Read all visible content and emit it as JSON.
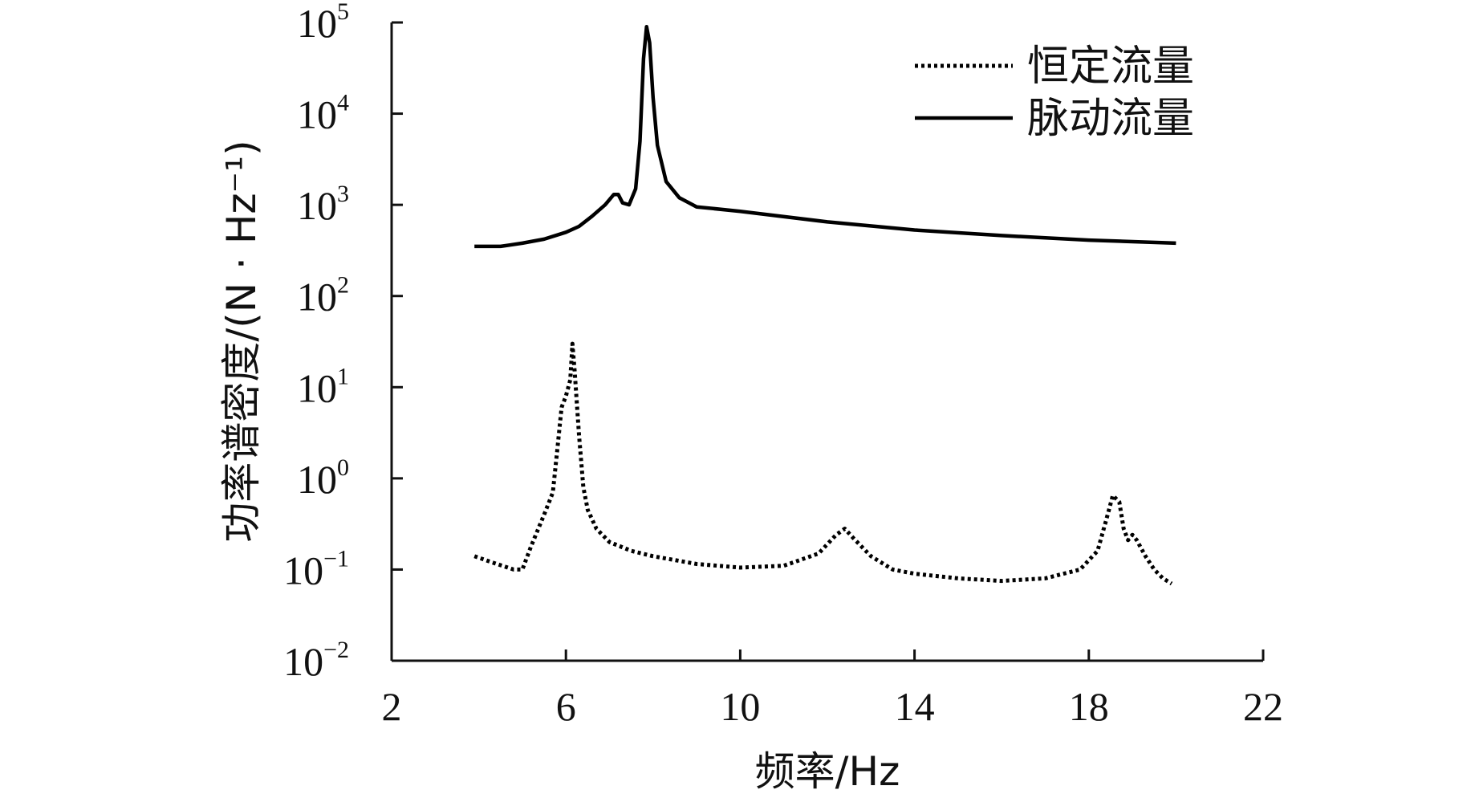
{
  "chart_data": {
    "type": "line",
    "xlabel": "频率/Hz",
    "ylabel": "功率谱密度/(N · Hz⁻¹)",
    "x_ticks": [
      "2",
      "6",
      "10",
      "14",
      "18",
      "22"
    ],
    "y_tick_base": "10",
    "y_tick_exponents": [
      "5",
      "4",
      "3",
      "2",
      "1",
      "0",
      "−1",
      "−2"
    ],
    "xlim": [
      2,
      22
    ],
    "ylim": [
      0.01,
      100000
    ],
    "y_scale": "log",
    "grid": false,
    "legend_position": "top-right",
    "series": [
      {
        "name": "恒定流量",
        "style": "dotted",
        "color": "#000000",
        "x": [
          3.9,
          4.3,
          4.8,
          5.0,
          5.2,
          5.5,
          5.7,
          5.8,
          5.9,
          6.0,
          6.1,
          6.15,
          6.2,
          6.3,
          6.4,
          6.5,
          6.7,
          7.0,
          7.5,
          8.0,
          9.0,
          10.0,
          11.0,
          11.8,
          12.2,
          12.4,
          12.6,
          13.0,
          13.5,
          14.0,
          15.0,
          16.0,
          17.0,
          17.8,
          18.2,
          18.4,
          18.55,
          18.7,
          18.8,
          18.9,
          19.0,
          19.1,
          19.3,
          19.5,
          19.7,
          19.9
        ],
        "y": [
          0.14,
          0.12,
          0.1,
          0.1,
          0.18,
          0.4,
          0.7,
          2.0,
          6.0,
          8.0,
          12.0,
          30.0,
          15.0,
          3.0,
          0.8,
          0.45,
          0.28,
          0.2,
          0.16,
          0.14,
          0.115,
          0.105,
          0.11,
          0.15,
          0.24,
          0.28,
          0.22,
          0.14,
          0.1,
          0.09,
          0.08,
          0.075,
          0.08,
          0.1,
          0.16,
          0.35,
          0.65,
          0.55,
          0.28,
          0.21,
          0.24,
          0.21,
          0.14,
          0.1,
          0.08,
          0.07
        ]
      },
      {
        "name": "脉动流量",
        "style": "solid",
        "color": "#000000",
        "x": [
          3.9,
          4.5,
          5.0,
          5.5,
          6.0,
          6.3,
          6.6,
          6.9,
          7.1,
          7.2,
          7.3,
          7.45,
          7.6,
          7.7,
          7.78,
          7.85,
          7.92,
          8.0,
          8.1,
          8.3,
          8.6,
          9.0,
          10.0,
          12.0,
          14.0,
          16.0,
          18.0,
          20.0
        ],
        "y": [
          350,
          350,
          380,
          420,
          500,
          580,
          750,
          1000,
          1300,
          1300,
          1050,
          1000,
          1500,
          5000,
          40000,
          90000,
          60000,
          15000,
          4500,
          1800,
          1200,
          950,
          850,
          650,
          530,
          460,
          410,
          380
        ]
      }
    ]
  }
}
